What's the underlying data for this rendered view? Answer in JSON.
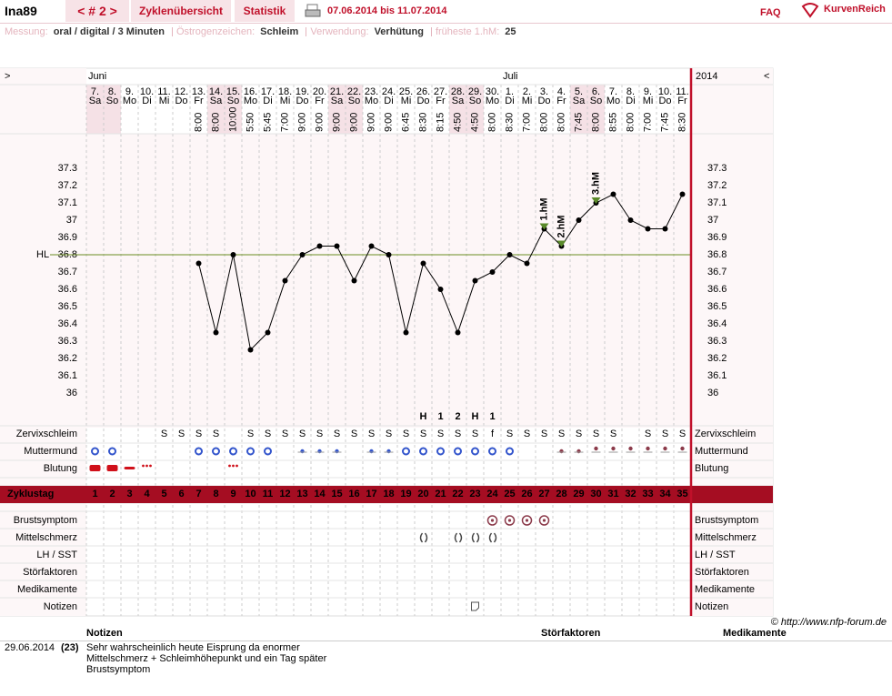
{
  "header": {
    "user": "Ina89",
    "cycle_nav": "< # 2 >",
    "tabs": [
      "Zyklenübersicht",
      "Statistik"
    ],
    "date_range": "07.06.2014 bis 11.07.2014",
    "faq": "FAQ",
    "brand": "KurvenReich"
  },
  "info": [
    {
      "label": "Messung:",
      "value": "oral / digital / 3 Minuten"
    },
    {
      "label": "Östrogenzeichen:",
      "value": "Schleim"
    },
    {
      "label": "Verwendung:",
      "value": "Verhütung"
    },
    {
      "label": "früheste 1.hM:",
      "value": "25"
    }
  ],
  "chart_data": {
    "type": "line",
    "nav_right": ">",
    "nav_left": "<",
    "months": [
      "Juni",
      "Juli"
    ],
    "year": "2014",
    "days": [
      "7.",
      "8.",
      "9.",
      "10.",
      "11.",
      "12.",
      "13.",
      "14.",
      "15.",
      "16.",
      "17.",
      "18.",
      "19.",
      "20.",
      "21.",
      "22.",
      "23.",
      "24.",
      "25.",
      "26.",
      "27.",
      "28.",
      "29.",
      "30.",
      "1.",
      "2.",
      "3.",
      "4.",
      "5.",
      "6.",
      "7.",
      "8.",
      "9.",
      "10.",
      "11."
    ],
    "weekdays": [
      "Sa",
      "So",
      "Mo",
      "Di",
      "Mi",
      "Do",
      "Fr",
      "Sa",
      "So",
      "Mo",
      "Di",
      "Mi",
      "Do",
      "Fr",
      "Sa",
      "So",
      "Mo",
      "Di",
      "Mi",
      "Do",
      "Fr",
      "Sa",
      "So",
      "Mo",
      "Di",
      "Mi",
      "Do",
      "Fr",
      "Sa",
      "So",
      "Mo",
      "Di",
      "Mi",
      "Do",
      "Fr"
    ],
    "times": [
      null,
      null,
      null,
      null,
      null,
      null,
      "8:00",
      "8:00",
      "10:00",
      "5:50",
      "5:45",
      "7:00",
      "9:00",
      "9:00",
      "9:00",
      "9:00",
      "9:00",
      "9:00",
      "6:45",
      "8:30",
      "8:15",
      "4:50",
      "4:50",
      "8:00",
      "8:30",
      "7:00",
      "8:00",
      "8:00",
      "7:45",
      "8:00",
      "8:55",
      "8:00",
      "7:00",
      "7:45",
      "8:30"
    ],
    "x_label": "Zyklustag",
    "x": [
      1,
      2,
      3,
      4,
      5,
      6,
      7,
      8,
      9,
      10,
      11,
      12,
      13,
      14,
      15,
      16,
      17,
      18,
      19,
      20,
      21,
      22,
      23,
      24,
      25,
      26,
      27,
      28,
      29,
      30,
      31,
      32,
      33,
      34,
      35
    ],
    "values": [
      null,
      null,
      null,
      null,
      null,
      null,
      36.75,
      36.35,
      36.8,
      36.25,
      36.35,
      36.65,
      36.8,
      36.85,
      36.85,
      36.65,
      36.85,
      36.8,
      36.35,
      36.75,
      36.6,
      36.35,
      36.65,
      36.7,
      36.8,
      36.75,
      36.95,
      36.85,
      37.0,
      37.1,
      37.15,
      37.0,
      36.95,
      36.95,
      37.15
    ],
    "color": "#000000",
    "xlim": [
      0.5,
      35.5
    ],
    "ylim": [
      35.8,
      37.5
    ],
    "yticks": [
      36,
      36.1,
      36.2,
      36.3,
      36.4,
      36.5,
      36.6,
      36.7,
      36.8,
      36.9,
      37,
      37.1,
      37.2,
      37.3
    ],
    "grid": false,
    "coverline": {
      "label": "HL",
      "value": 36.8,
      "color": "#6b8e23"
    },
    "annotations": [
      {
        "label": "1.hM",
        "x": 27
      },
      {
        "label": "2.hM",
        "x": 28
      },
      {
        "label": "3.hM",
        "x": 30
      }
    ],
    "row_labels": [
      "Zervixschleim",
      "Muttermund",
      "Blutung"
    ],
    "mucus": [
      null,
      null,
      null,
      null,
      "S",
      "S",
      "S",
      "S",
      null,
      "S",
      "S",
      "S",
      "S",
      "S",
      "S",
      "S",
      "S",
      "S",
      "S",
      "S",
      "S",
      "S",
      "S",
      "f",
      "S",
      "S",
      "S",
      "S",
      "S",
      "S",
      "S",
      null,
      "S",
      "S",
      "S"
    ],
    "peak_marks": [
      null,
      null,
      null,
      null,
      null,
      null,
      null,
      null,
      null,
      null,
      null,
      null,
      null,
      null,
      null,
      null,
      null,
      null,
      null,
      "H",
      "1",
      "2",
      "H",
      "1",
      null,
      null,
      null,
      null,
      null,
      null,
      null,
      null,
      null,
      null,
      null
    ],
    "cervix_days": [
      1,
      2,
      7,
      8,
      9,
      10,
      11,
      13,
      14,
      15,
      17,
      18,
      19,
      20,
      21,
      22,
      23,
      24,
      25,
      28,
      29,
      30,
      31,
      32,
      33,
      34,
      35
    ],
    "bleeding_days": [
      1,
      2,
      3,
      4,
      9
    ],
    "symptom_rows": [
      "Brustsymptom",
      "Mittelschmerz",
      "LH / SST",
      "Störfaktoren",
      "Medikamente",
      "Notizen"
    ],
    "breast_days": [
      24,
      25,
      26,
      27
    ],
    "pain_days": [
      20,
      22,
      23,
      24
    ],
    "note_days": [
      23
    ]
  },
  "copyright": "© http://www.nfp-forum.de",
  "notes": {
    "headers": [
      "Notizen",
      "Störfaktoren",
      "Medikamente"
    ],
    "rows": [
      [
        "29.06.2014",
        "(23)",
        "Sehr wahrscheinlich heute Eisprung da enormer Mittelschmerz + Schleimhöhepunkt und ein Tag später Brustsymptom"
      ]
    ]
  }
}
